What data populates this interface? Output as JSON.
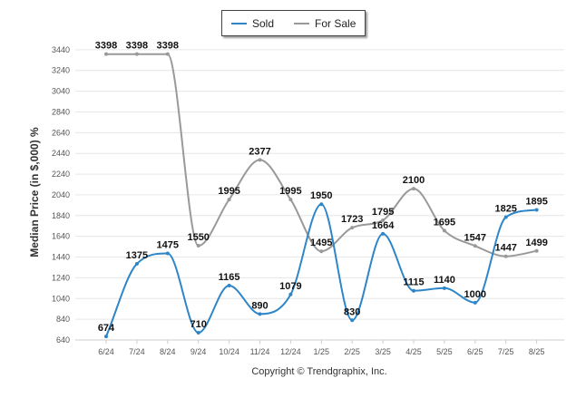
{
  "legend": {
    "sold_label": "Sold",
    "for_sale_label": "For Sale"
  },
  "footer": {
    "copyright": "Copyright © Trendgraphix, Inc."
  },
  "chart_data": {
    "type": "line",
    "categories": [
      "6/24",
      "7/24",
      "8/24",
      "9/24",
      "10/24",
      "11/24",
      "12/24",
      "1/25",
      "2/25",
      "3/25",
      "4/25",
      "5/25",
      "6/25",
      "7/25",
      "8/25"
    ],
    "ylabel": "Median Price (in $,000) %",
    "ylim": [
      640,
      3500
    ],
    "y_ticks": [
      640,
      840,
      1040,
      1240,
      1440,
      1640,
      1840,
      2040,
      2240,
      2440,
      2640,
      2840,
      3040,
      3240,
      3440
    ],
    "grid": true,
    "legend_position": "top-center",
    "series": [
      {
        "name": "Sold",
        "color": "#2e86c8",
        "values": [
          674,
          1375,
          1475,
          710,
          1165,
          890,
          1079,
          1950,
          830,
          1664,
          1115,
          1140,
          1000,
          1825,
          1895
        ]
      },
      {
        "name": "For Sale",
        "color": "#999999",
        "values": [
          3398,
          3398,
          3398,
          1550,
          1995,
          2377,
          1995,
          1495,
          1723,
          1795,
          2100,
          1695,
          1547,
          1447,
          1499
        ]
      }
    ]
  }
}
